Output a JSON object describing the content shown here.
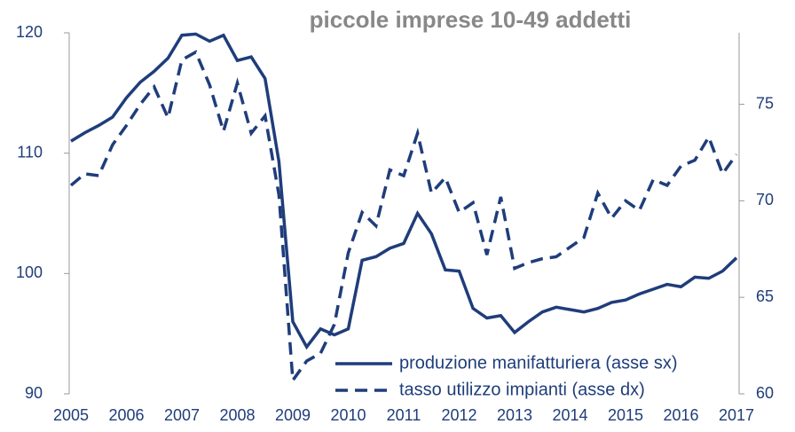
{
  "chart_data": {
    "type": "line",
    "title": "piccole imprese 10-49 addetti",
    "x": [
      2005,
      2005.25,
      2005.5,
      2005.75,
      2006,
      2006.25,
      2006.5,
      2006.75,
      2007,
      2007.25,
      2007.5,
      2007.75,
      2008,
      2008.25,
      2008.5,
      2008.75,
      2009,
      2009.25,
      2009.5,
      2009.75,
      2010,
      2010.25,
      2010.5,
      2010.75,
      2011,
      2011.25,
      2011.5,
      2011.75,
      2012,
      2012.25,
      2012.5,
      2012.75,
      2013,
      2013.25,
      2013.5,
      2013.75,
      2014,
      2014.25,
      2014.5,
      2014.75,
      2015,
      2015.25,
      2015.5,
      2015.75,
      2016,
      2016.25,
      2016.5,
      2016.75,
      2017
    ],
    "series": [
      {
        "name": "produzione manifatturiera (asse sx)",
        "color": "#1f3d7a",
        "dash": "solid",
        "values": [
          111.0,
          111.7,
          112.3,
          113.0,
          114.6,
          115.9,
          116.8,
          117.9,
          119.8,
          119.9,
          119.3,
          119.8,
          117.7,
          118.0,
          116.2,
          109.3,
          96.0,
          93.9,
          95.4,
          94.9,
          95.4,
          101.1,
          101.4,
          102.1,
          102.5,
          105.0,
          103.3,
          100.3,
          100.2,
          97.1,
          96.3,
          96.5,
          95.1,
          96.0,
          96.8,
          97.2,
          97.0,
          96.8,
          97.1,
          97.6,
          97.8,
          98.3,
          98.7,
          99.1,
          98.9,
          99.7,
          99.6,
          100.2,
          101.3
        ]
      },
      {
        "name": "tasso utilizzo impianti (asse dx)",
        "color": "#1f3d7a",
        "dash": "dashed",
        "axis": "y2",
        "values": [
          70.8,
          71.4,
          71.3,
          72.9,
          73.9,
          75.0,
          75.9,
          74.3,
          77.3,
          77.7,
          76.0,
          73.6,
          76.1,
          73.5,
          74.4,
          70.3,
          60.7,
          61.7,
          62.1,
          63.6,
          67.3,
          69.4,
          68.7,
          71.6,
          71.3,
          73.5,
          70.4,
          71.2,
          69.4,
          69.9,
          67.2,
          70.2,
          66.5,
          66.8,
          67.0,
          67.1,
          67.6,
          68.1,
          70.4,
          69.1,
          70.0,
          69.5,
          71.1,
          70.8,
          71.8,
          72.1,
          73.3,
          71.4,
          72.4
        ]
      }
    ],
    "xlim": [
      2005,
      2017
    ],
    "xticks": [
      2005,
      2006,
      2007,
      2008,
      2009,
      2010,
      2011,
      2012,
      2013,
      2014,
      2015,
      2016,
      2017
    ],
    "ylim": [
      90,
      120
    ],
    "yticks": [
      90,
      100,
      110,
      120
    ],
    "y2lim": [
      60,
      78.7
    ],
    "y2ticks": [
      60,
      65,
      70,
      75
    ],
    "legend": "lower right"
  }
}
